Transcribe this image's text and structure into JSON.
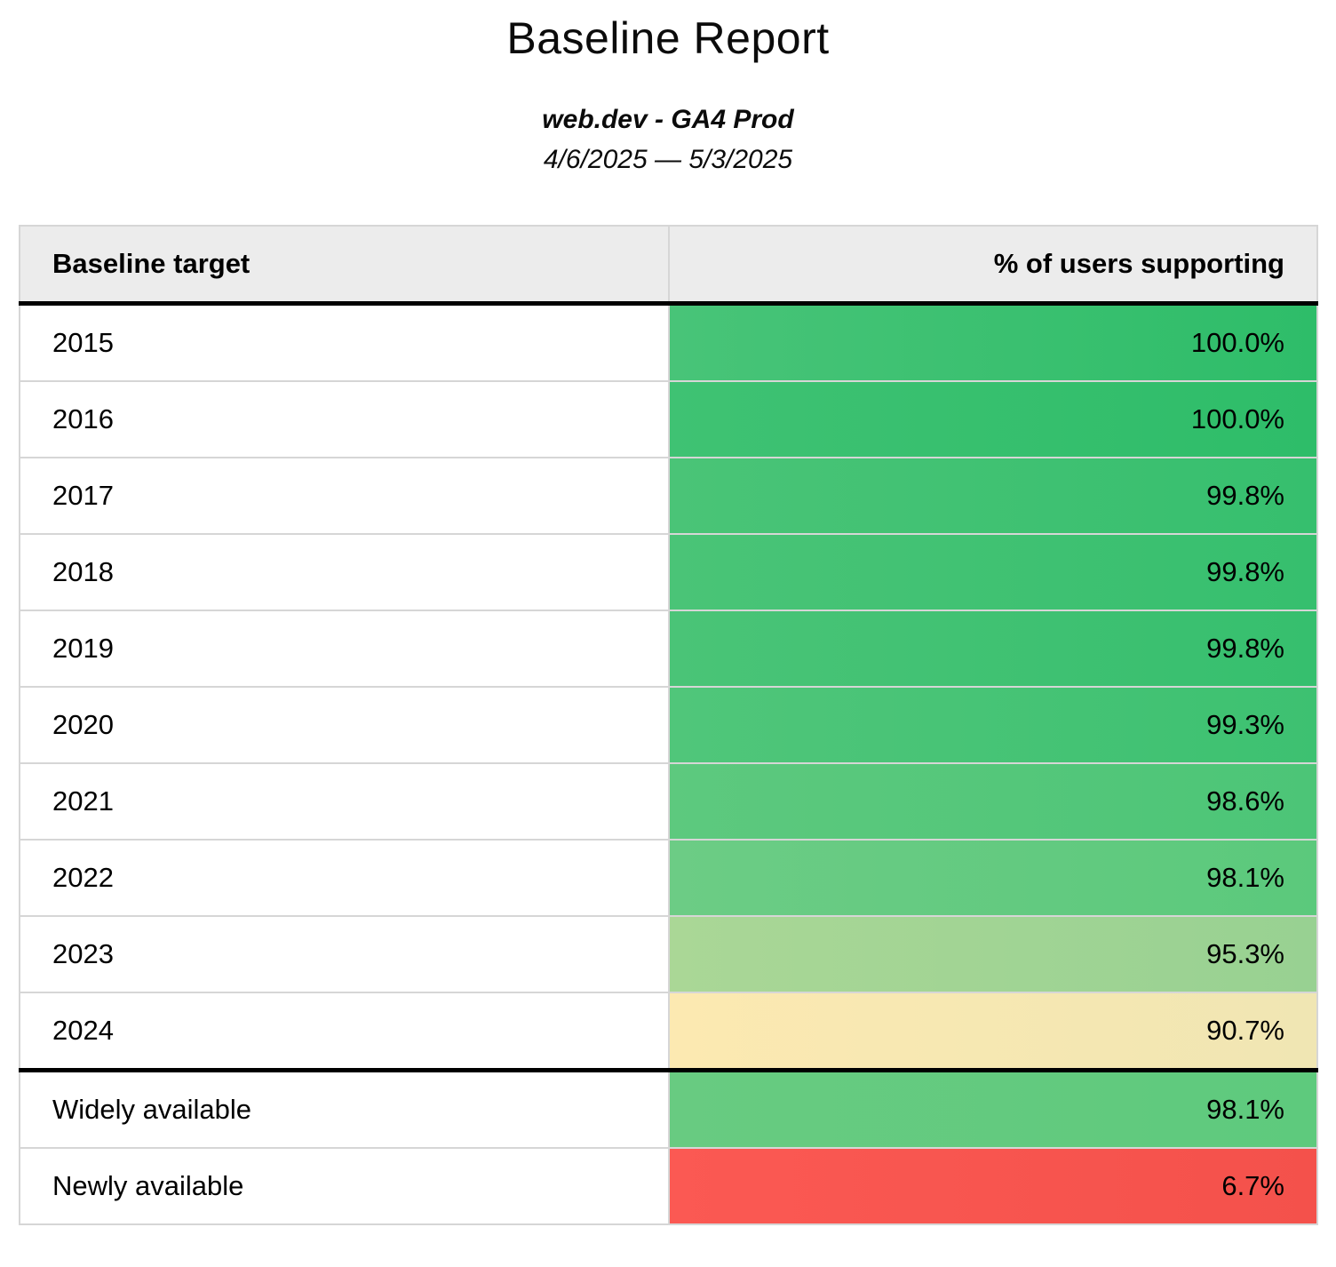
{
  "header": {
    "title": "Baseline Report",
    "subtitle": "web.dev - GA4 Prod",
    "date_range": "4/6/2025 — 5/3/2025"
  },
  "table": {
    "columns": [
      "Baseline target",
      "% of users supporting"
    ],
    "sections": [
      {
        "name": "baseline-years",
        "rows": [
          {
            "label": "2015",
            "value": "100.0%",
            "color_left": "#48c478",
            "color_right": "#2ebd69"
          },
          {
            "label": "2016",
            "value": "100.0%",
            "color_left": "#3fc273",
            "color_right": "#2ebd69"
          },
          {
            "label": "2017",
            "value": "99.8%",
            "color_left": "#4ac477",
            "color_right": "#36bf6e"
          },
          {
            "label": "2018",
            "value": "99.8%",
            "color_left": "#4ac477",
            "color_right": "#36bf6e"
          },
          {
            "label": "2019",
            "value": "99.8%",
            "color_left": "#4ac477",
            "color_right": "#36bf6e"
          },
          {
            "label": "2020",
            "value": "99.3%",
            "color_left": "#50c67a",
            "color_right": "#3dc171"
          },
          {
            "label": "2021",
            "value": "98.6%",
            "color_left": "#5dc97e",
            "color_right": "#4cc577"
          },
          {
            "label": "2022",
            "value": "98.1%",
            "color_left": "#6ccc85",
            "color_right": "#5bc97c"
          },
          {
            "label": "2023",
            "value": "95.3%",
            "color_left": "#aad796",
            "color_right": "#98d192"
          },
          {
            "label": "2024",
            "value": "90.7%",
            "color_left": "#fce9b1",
            "color_right": "#f0e6b3"
          }
        ]
      },
      {
        "name": "availability",
        "rows": [
          {
            "label": "Widely available",
            "value": "98.1%",
            "color_left": "#68cb81",
            "color_right": "#5eca7d"
          },
          {
            "label": "Newly available",
            "value": "6.7%",
            "color_left": "#fb5953",
            "color_right": "#f4514b"
          }
        ]
      }
    ]
  },
  "colors": {
    "header_bg": "#ececec",
    "grid_border": "#d6d6d6",
    "section_border": "#000000",
    "good_green": "#2ebd69",
    "warn_yellow": "#f0e6b3",
    "bad_red": "#f4514b"
  },
  "chart_data": {
    "type": "table",
    "title": "Baseline Report",
    "subtitle": "web.dev - GA4 Prod",
    "date_range": "4/6/2025 — 5/3/2025",
    "columns": [
      "Baseline target",
      "% of users supporting"
    ],
    "categories": [
      "2015",
      "2016",
      "2017",
      "2018",
      "2019",
      "2020",
      "2021",
      "2022",
      "2023",
      "2024",
      "Widely available",
      "Newly available"
    ],
    "values": [
      100.0,
      100.0,
      99.8,
      99.8,
      99.8,
      99.3,
      98.6,
      98.1,
      95.3,
      90.7,
      98.1,
      6.7
    ],
    "value_unit": "%",
    "layout_hints": "two-column table; value column cells heat-colored green (high) through yellow (mid) to red (low); thick black rule under header and between year section and availability section"
  }
}
